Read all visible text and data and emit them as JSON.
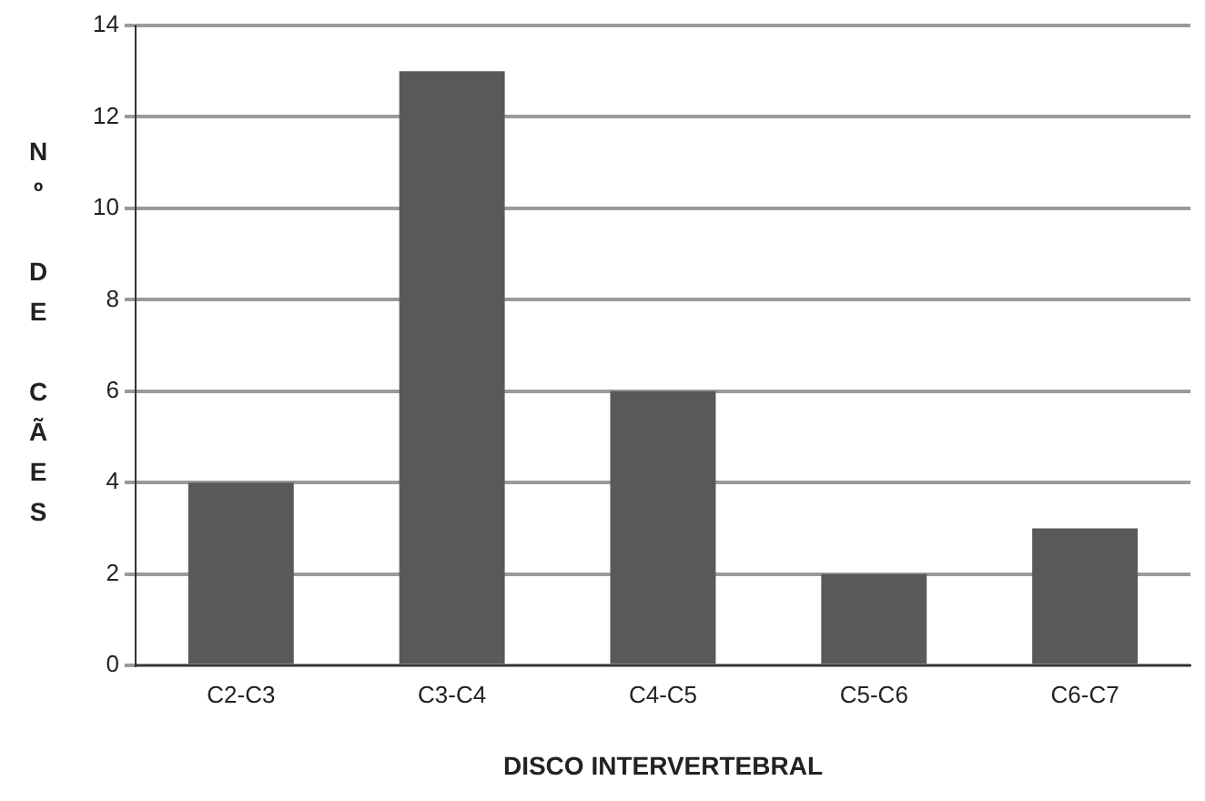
{
  "chart_data": {
    "type": "bar",
    "xlabel": "DISCO INTERVERTEBRAL",
    "ylabel": "Nº DE CÃES",
    "categories": [
      "C2-C3",
      "C3-C4",
      "C4-C5",
      "C5-C6",
      "C6-C7"
    ],
    "values": [
      4,
      13,
      6,
      2,
      3
    ],
    "color": "#595959",
    "ylim": [
      0,
      14
    ],
    "yticks": [
      0,
      2,
      4,
      6,
      8,
      10,
      12,
      14
    ],
    "grid": "y",
    "legend": false
  }
}
